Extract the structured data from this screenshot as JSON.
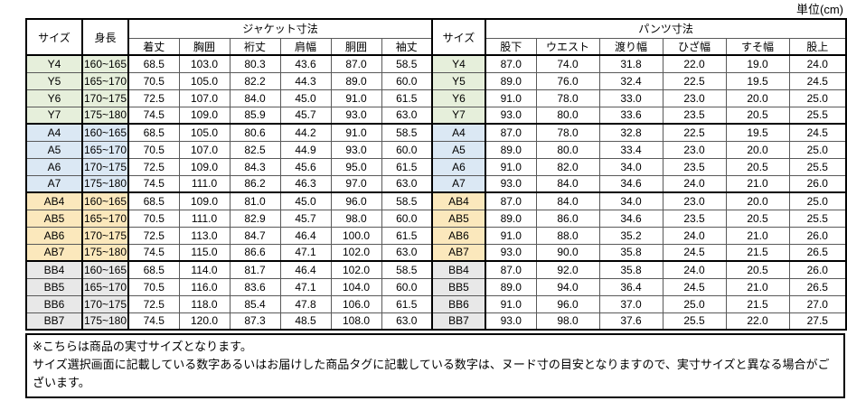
{
  "unit_label": "単位(cm)",
  "table": {
    "headers": {
      "size": "サイズ",
      "height": "身長",
      "jacket_group": "ジャケット寸法",
      "jacket_cols": [
        "着丈",
        "胸囲",
        "裄丈",
        "肩幅",
        "胴囲",
        "袖丈"
      ],
      "pants_group": "パンツ寸法",
      "pants_cols": [
        "股下",
        "ウエスト",
        "渡り幅",
        "ひざ幅",
        "すそ幅",
        "股上"
      ]
    },
    "groups": [
      {
        "name": "Y",
        "color": "#E6EFDB",
        "rows": [
          {
            "size": "Y4",
            "height": "160~165",
            "jacket": [
              "68.5",
              "103.0",
              "80.3",
              "43.6",
              "87.0",
              "58.5"
            ],
            "pants": [
              "87.0",
              "74.0",
              "31.8",
              "22.0",
              "19.0",
              "24.0"
            ]
          },
          {
            "size": "Y5",
            "height": "165~170",
            "jacket": [
              "70.5",
              "105.0",
              "82.2",
              "44.3",
              "89.0",
              "60.0"
            ],
            "pants": [
              "89.0",
              "76.0",
              "32.4",
              "22.5",
              "19.5",
              "24.5"
            ]
          },
          {
            "size": "Y6",
            "height": "170~175",
            "jacket": [
              "72.5",
              "107.0",
              "84.0",
              "45.0",
              "91.0",
              "61.5"
            ],
            "pants": [
              "91.0",
              "78.0",
              "33.0",
              "23.0",
              "20.0",
              "25.0"
            ]
          },
          {
            "size": "Y7",
            "height": "175~180",
            "jacket": [
              "74.5",
              "109.0",
              "85.9",
              "45.7",
              "93.0",
              "63.0"
            ],
            "pants": [
              "93.0",
              "80.0",
              "33.6",
              "23.5",
              "20.5",
              "25.5"
            ]
          }
        ]
      },
      {
        "name": "A",
        "color": "#DBE8F4",
        "rows": [
          {
            "size": "A4",
            "height": "160~165",
            "jacket": [
              "68.5",
              "105.0",
              "80.6",
              "44.2",
              "91.0",
              "58.5"
            ],
            "pants": [
              "87.0",
              "78.0",
              "32.8",
              "22.5",
              "19.5",
              "24.5"
            ]
          },
          {
            "size": "A5",
            "height": "165~170",
            "jacket": [
              "70.5",
              "107.0",
              "82.5",
              "44.9",
              "93.0",
              "60.0"
            ],
            "pants": [
              "89.0",
              "80.0",
              "33.4",
              "23.0",
              "20.0",
              "25.0"
            ]
          },
          {
            "size": "A6",
            "height": "170~175",
            "jacket": [
              "72.5",
              "109.0",
              "84.3",
              "45.6",
              "95.0",
              "61.5"
            ],
            "pants": [
              "91.0",
              "82.0",
              "34.0",
              "23.5",
              "20.5",
              "25.5"
            ]
          },
          {
            "size": "A7",
            "height": "175~180",
            "jacket": [
              "74.5",
              "111.0",
              "86.2",
              "46.3",
              "97.0",
              "63.0"
            ],
            "pants": [
              "93.0",
              "84.0",
              "34.6",
              "24.0",
              "21.0",
              "26.0"
            ]
          }
        ]
      },
      {
        "name": "AB",
        "color": "#FBE8BC",
        "rows": [
          {
            "size": "AB4",
            "height": "160~165",
            "jacket": [
              "68.5",
              "109.0",
              "81.0",
              "45.0",
              "96.0",
              "58.5"
            ],
            "pants": [
              "87.0",
              "84.0",
              "34.0",
              "23.0",
              "20.0",
              "25.0"
            ]
          },
          {
            "size": "AB5",
            "height": "165~170",
            "jacket": [
              "70.5",
              "111.0",
              "82.9",
              "45.7",
              "98.0",
              "60.0"
            ],
            "pants": [
              "89.0",
              "86.0",
              "34.6",
              "23.5",
              "20.5",
              "25.5"
            ]
          },
          {
            "size": "AB6",
            "height": "170~175",
            "jacket": [
              "72.5",
              "113.0",
              "84.7",
              "46.4",
              "100.0",
              "61.5"
            ],
            "pants": [
              "91.0",
              "88.0",
              "35.2",
              "24.0",
              "21.0",
              "26.0"
            ]
          },
          {
            "size": "AB7",
            "height": "175~180",
            "jacket": [
              "74.5",
              "115.0",
              "86.6",
              "47.1",
              "102.0",
              "63.0"
            ],
            "pants": [
              "93.0",
              "90.0",
              "35.8",
              "24.5",
              "21.5",
              "26.5"
            ]
          }
        ]
      },
      {
        "name": "BB",
        "color": "#E8E8E8",
        "rows": [
          {
            "size": "BB4",
            "height": "160~165",
            "jacket": [
              "68.5",
              "114.0",
              "81.7",
              "46.4",
              "102.0",
              "58.5"
            ],
            "pants": [
              "87.0",
              "92.0",
              "35.8",
              "24.0",
              "20.5",
              "26.0"
            ]
          },
          {
            "size": "BB5",
            "height": "165~170",
            "jacket": [
              "70.5",
              "116.0",
              "83.6",
              "47.1",
              "104.0",
              "60.0"
            ],
            "pants": [
              "89.0",
              "94.0",
              "36.4",
              "24.5",
              "21.0",
              "26.5"
            ]
          },
          {
            "size": "BB6",
            "height": "170~175",
            "jacket": [
              "72.5",
              "118.0",
              "85.4",
              "47.8",
              "106.0",
              "61.5"
            ],
            "pants": [
              "91.0",
              "96.0",
              "37.0",
              "25.0",
              "21.5",
              "27.0"
            ]
          },
          {
            "size": "BB7",
            "height": "175~180",
            "jacket": [
              "74.5",
              "120.0",
              "87.3",
              "48.5",
              "108.0",
              "63.0"
            ],
            "pants": [
              "93.0",
              "98.0",
              "37.6",
              "25.5",
              "22.0",
              "27.5"
            ]
          }
        ]
      }
    ]
  },
  "notes": [
    "※こちらは商品の実寸サイズとなります。",
    "サイズ選択画面に記載している数字あるいはお届けした商品タグに記載している数字は、ヌード寸の目安となりますので、実寸サイズと異なる場合がございます。"
  ]
}
